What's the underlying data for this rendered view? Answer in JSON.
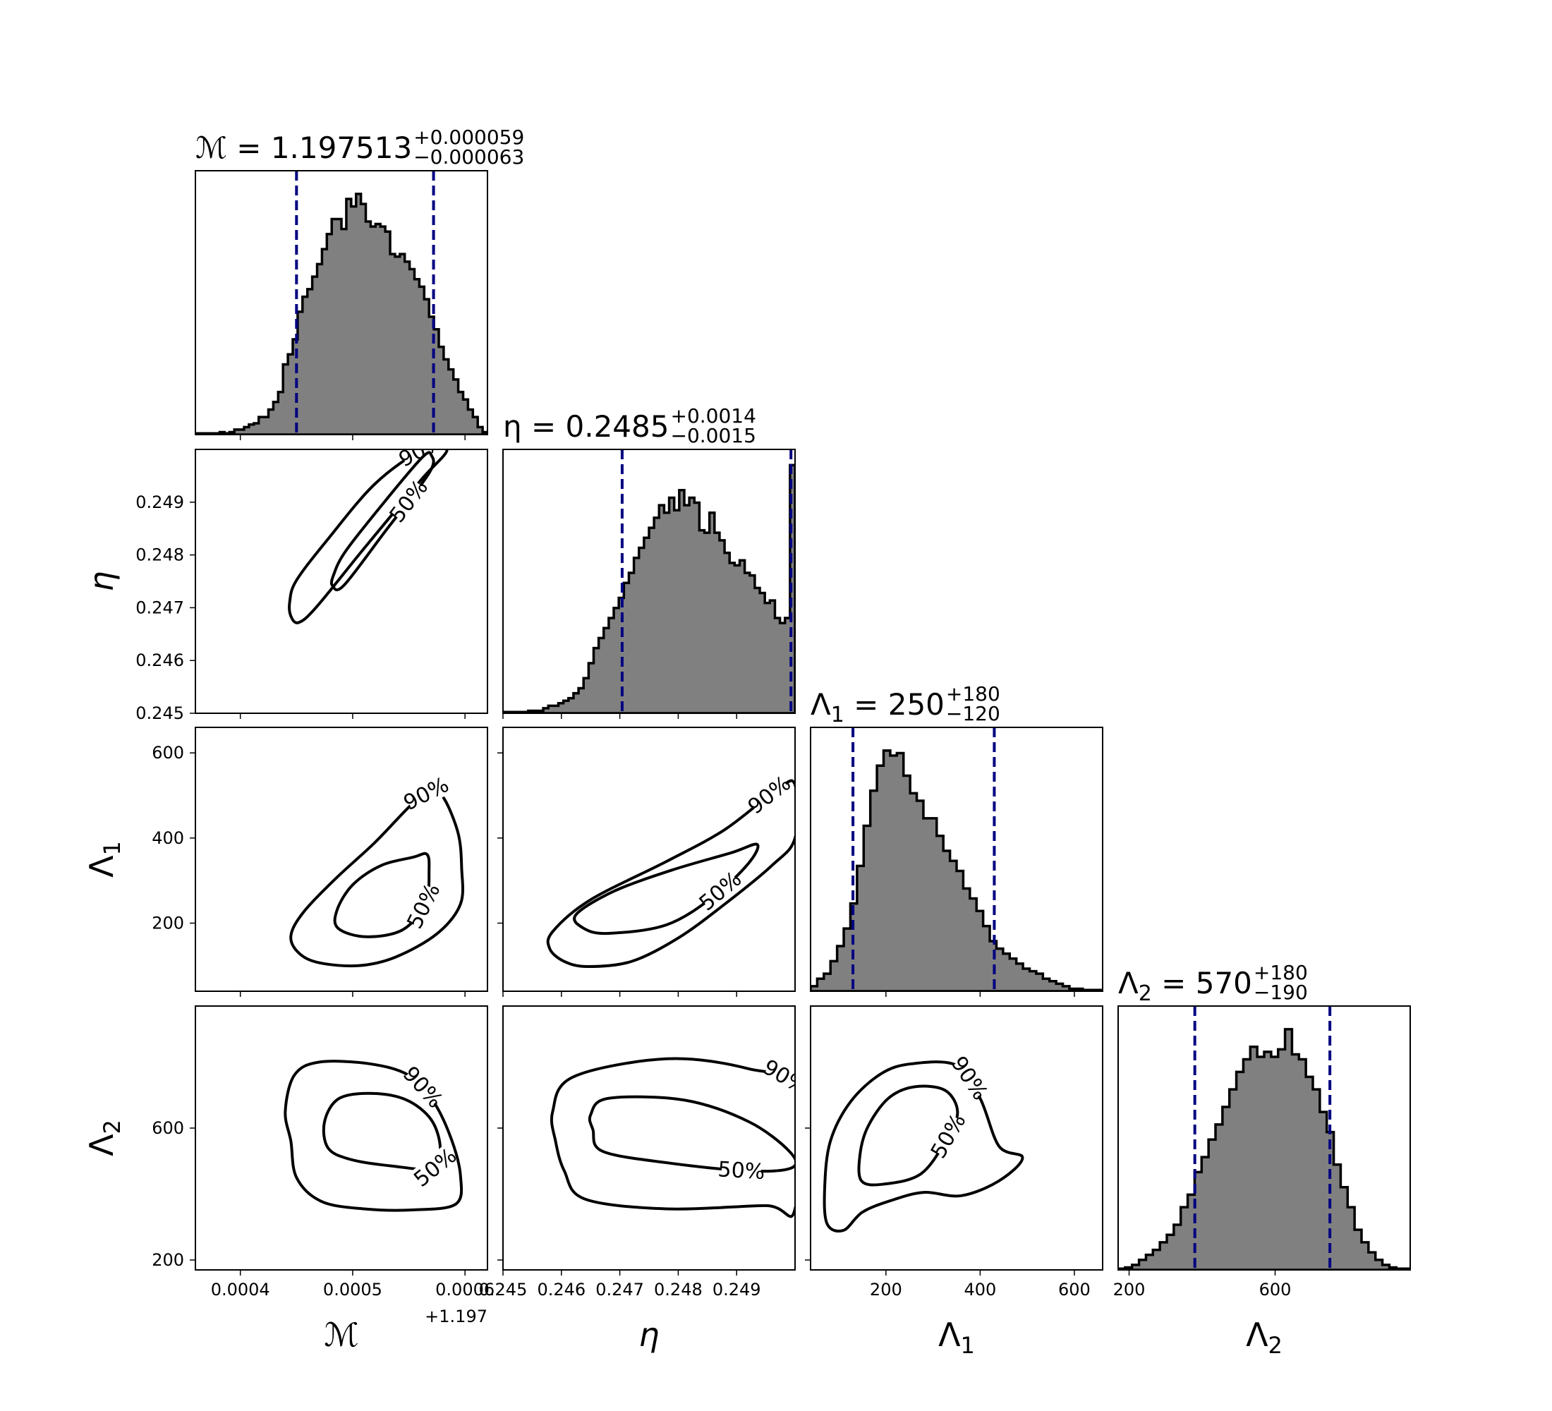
{
  "chart_data": {
    "type": "corner",
    "parameters": [
      {
        "symbol": "ℳ",
        "sub": "",
        "axis_offset": "+1.197",
        "range": [
          0.00036,
          0.00062
        ],
        "title": {
          "prefix": "ℳ = ",
          "value": "1.197513",
          "plus": "+0.000059",
          "minus": "−0.000063"
        },
        "ticks": [
          0.0004,
          0.0005,
          0.0006
        ],
        "tick_labels": [
          "0.0004",
          "0.0005",
          "0.0006"
        ],
        "quantiles": [
          0.00045,
          0.000572
        ],
        "peak": 0.000515
      },
      {
        "symbol": "η",
        "sub": "",
        "axis_offset": "",
        "range": [
          0.245,
          0.25
        ],
        "title": {
          "prefix": "η = ",
          "value": "0.2485",
          "plus": "+0.0014",
          "minus": "−0.0015"
        },
        "ticks": [
          0.245,
          0.246,
          0.247,
          0.248,
          0.249
        ],
        "tick_labels": [
          "0.245",
          "0.246",
          "0.247",
          "0.248",
          "0.249"
        ],
        "quantiles": [
          0.24704,
          0.24993
        ],
        "peak": 0.2485
      },
      {
        "symbol": "Λ",
        "sub": "1",
        "axis_offset": "",
        "range": [
          40,
          660
        ],
        "title": {
          "prefix": "Λ",
          "sub": "1",
          "suffix": " = ",
          "value": "250",
          "plus": "+180",
          "minus": "−120"
        },
        "ticks": [
          200,
          400,
          600
        ],
        "tick_labels": [
          "200",
          "400",
          "600"
        ],
        "quantiles": [
          130,
          430
        ],
        "peak": 230
      },
      {
        "symbol": "Λ",
        "sub": "2",
        "axis_offset": "",
        "range": [
          170,
          970
        ],
        "title": {
          "prefix": "Λ",
          "sub": "2",
          "suffix": " = ",
          "value": "570",
          "plus": "+180",
          "minus": "−190"
        },
        "ticks": [
          200,
          600
        ],
        "tick_labels": [
          "200",
          "600"
        ],
        "quantiles": [
          380,
          750
        ],
        "peak": 585
      }
    ],
    "histograms": [
      {
        "param": "ℳ",
        "bins": [
          0.00036,
          0.00062
        ],
        "counts": [
          0.005,
          0.005,
          0.005,
          0.005,
          0.005,
          0.01,
          0.005,
          0.01,
          0.02,
          0.02,
          0.03,
          0.04,
          0.045,
          0.07,
          0.07,
          0.1,
          0.13,
          0.17,
          0.28,
          0.32,
          0.38,
          0.49,
          0.55,
          0.58,
          0.63,
          0.68,
          0.74,
          0.8,
          0.86,
          0.86,
          0.82,
          0.94,
          0.91,
          0.96,
          0.92,
          0.85,
          0.83,
          0.84,
          0.83,
          0.81,
          0.72,
          0.71,
          0.72,
          0.69,
          0.66,
          0.62,
          0.59,
          0.54,
          0.47,
          0.42,
          0.35,
          0.3,
          0.26,
          0.22,
          0.17,
          0.14,
          0.1,
          0.07,
          0.03,
          0.01
        ]
      },
      {
        "param": "η",
        "bins": [
          0.245,
          0.25
        ],
        "counts": [
          0.005,
          0.005,
          0.005,
          0.005,
          0.005,
          0.01,
          0.01,
          0.01,
          0.02,
          0.03,
          0.03,
          0.04,
          0.05,
          0.06,
          0.08,
          0.1,
          0.14,
          0.2,
          0.26,
          0.3,
          0.34,
          0.38,
          0.42,
          0.46,
          0.52,
          0.56,
          0.62,
          0.66,
          0.7,
          0.74,
          0.78,
          0.83,
          0.8,
          0.86,
          0.81,
          0.89,
          0.83,
          0.86,
          0.84,
          0.73,
          0.72,
          0.8,
          0.72,
          0.69,
          0.64,
          0.6,
          0.59,
          0.61,
          0.56,
          0.55,
          0.5,
          0.48,
          0.44,
          0.45,
          0.38,
          0.36,
          0.38,
          0.99
        ]
      },
      {
        "param": "Λ1",
        "bins": [
          40,
          660
        ],
        "counts": [
          0.02,
          0.05,
          0.07,
          0.12,
          0.18,
          0.25,
          0.35,
          0.5,
          0.66,
          0.8,
          0.9,
          0.96,
          0.94,
          0.95,
          0.86,
          0.79,
          0.76,
          0.69,
          0.69,
          0.62,
          0.56,
          0.52,
          0.48,
          0.41,
          0.37,
          0.32,
          0.26,
          0.2,
          0.17,
          0.15,
          0.13,
          0.11,
          0.09,
          0.08,
          0.07,
          0.05,
          0.04,
          0.03,
          0.02,
          0.01,
          0.01,
          0.005,
          0.005,
          0.005
        ]
      },
      {
        "param": "Λ2",
        "bins": [
          170,
          970
        ],
        "counts": [
          0.005,
          0.01,
          0.02,
          0.04,
          0.06,
          0.08,
          0.11,
          0.14,
          0.18,
          0.25,
          0.3,
          0.39,
          0.45,
          0.52,
          0.58,
          0.65,
          0.72,
          0.79,
          0.84,
          0.89,
          0.85,
          0.87,
          0.85,
          0.88,
          0.96,
          0.86,
          0.84,
          0.77,
          0.72,
          0.63,
          0.55,
          0.42,
          0.33,
          0.25,
          0.16,
          0.11,
          0.07,
          0.04,
          0.02,
          0.01,
          0.005,
          0.005
        ]
      }
    ],
    "contour_levels": [
      "50%",
      "90%"
    ],
    "contours": [
      {
        "x": "ℳ",
        "y": "η",
        "levels": [
          {
            "label": "90%",
            "points": [
              [
                0.000445,
                0.24684
              ],
              [
                0.000452,
                0.24672
              ],
              [
                0.000468,
                0.24702
              ],
              [
                0.00051,
                0.24812
              ],
              [
                0.00056,
                0.2494
              ],
              [
                0.000584,
                0.24999
              ],
              [
                0.000562,
                0.24999
              ],
              [
                0.00052,
                0.24935
              ],
              [
                0.000478,
                0.2483
              ],
              [
                0.00045,
                0.24752
              ],
              [
                0.000444,
                0.24712
              ],
              [
                0.000445,
                0.24684
              ]
            ]
          },
          {
            "label": "50%",
            "points": [
              [
                0.000482,
                0.24742
              ],
              [
                0.000492,
                0.24742
              ],
              [
                0.000528,
                0.24842
              ],
              [
                0.000568,
                0.24955
              ],
              [
                0.00057,
                0.24989
              ],
              [
                0.000562,
                0.24985
              ],
              [
                0.00053,
                0.24905
              ],
              [
                0.000494,
                0.24808
              ],
              [
                0.000483,
                0.24762
              ],
              [
                0.000482,
                0.24742
              ]
            ]
          }
        ]
      },
      {
        "x": "ℳ",
        "y": "Λ1",
        "levels": [
          {
            "label": "90%",
            "points": [
              [
                0.00047,
                107
              ],
              [
                0.000505,
                100
              ],
              [
                0.000538,
                120
              ],
              [
                0.000575,
                175
              ],
              [
                0.000596,
                245
              ],
              [
                0.000597,
                330
              ],
              [
                0.000594,
                410
              ],
              [
                0.000582,
                490
              ],
              [
                0.000572,
                508
              ],
              [
                0.000555,
                485
              ],
              [
                0.00052,
                390
              ],
              [
                0.000485,
                305
              ],
              [
                0.000456,
                225
              ],
              [
                0.000445,
                170
              ],
              [
                0.000452,
                130
              ],
              [
                0.00047,
                107
              ]
            ]
          },
          {
            "label": "50%",
            "points": [
              [
                0.000487,
                188
              ],
              [
                0.000512,
                168
              ],
              [
                0.000545,
                185
              ],
              [
                0.000565,
                250
              ],
              [
                0.000568,
                325
              ],
              [
                0.000566,
                362
              ],
              [
                0.000554,
                355
              ],
              [
                0.000525,
                335
              ],
              [
                0.0005,
                290
              ],
              [
                0.000486,
                230
              ],
              [
                0.000487,
                188
              ]
            ]
          }
        ]
      },
      {
        "x": "η",
        "y": "Λ1",
        "levels": [
          {
            "label": "90%",
            "points": [
              [
                0.24605,
                110
              ],
              [
                0.24645,
                98
              ],
              [
                0.2472,
                110
              ],
              [
                0.248,
                165
              ],
              [
                0.2488,
                245
              ],
              [
                0.2496,
                335
              ],
              [
                0.25,
                400
              ],
              [
                0.25,
                525
              ],
              [
                0.2497,
                515
              ],
              [
                0.2488,
                420
              ],
              [
                0.2478,
                345
              ],
              [
                0.2465,
                255
              ],
              [
                0.24585,
                180
              ],
              [
                0.2458,
                140
              ],
              [
                0.24605,
                110
              ]
            ]
          },
          {
            "label": "50%",
            "points": [
              [
                0.24638,
                188
              ],
              [
                0.2468,
                176
              ],
              [
                0.2478,
                196
              ],
              [
                0.2486,
                262
              ],
              [
                0.2492,
                340
              ],
              [
                0.24935,
                385
              ],
              [
                0.2489,
                365
              ],
              [
                0.2479,
                325
              ],
              [
                0.2469,
                275
              ],
              [
                0.24625,
                220
              ],
              [
                0.24638,
                188
              ]
            ]
          }
        ]
      },
      {
        "x": "ℳ",
        "y": "Λ2",
        "levels": [
          {
            "label": "90%",
            "points": [
              [
                0.00045,
                450
              ],
              [
                0.000472,
                378
              ],
              [
                0.00051,
                355
              ],
              [
                0.000555,
                352
              ],
              [
                0.000592,
                370
              ],
              [
                0.000596,
                455
              ],
              [
                0.000588,
                565
              ],
              [
                0.000572,
                680
              ],
              [
                0.00055,
                760
              ],
              [
                0.000515,
                795
              ],
              [
                0.00047,
                800
              ],
              [
                0.000448,
                760
              ],
              [
                0.00044,
                650
              ],
              [
                0.000445,
                560
              ],
              [
                0.00045,
                450
              ]
            ]
          },
          {
            "label": "50%",
            "points": [
              [
                0.000478,
                540
              ],
              [
                0.000498,
                505
              ],
              [
                0.000535,
                485
              ],
              [
                0.000572,
                478
              ],
              [
                0.000578,
                540
              ],
              [
                0.00057,
                625
              ],
              [
                0.000548,
                685
              ],
              [
                0.000518,
                705
              ],
              [
                0.000488,
                690
              ],
              [
                0.000475,
                620
              ],
              [
                0.000478,
                540
              ]
            ]
          }
        ]
      },
      {
        "x": "η",
        "y": "Λ2",
        "levels": [
          {
            "label": "90%",
            "points": [
              [
                0.24605,
                470
              ],
              [
                0.2464,
                385
              ],
              [
                0.2478,
                355
              ],
              [
                0.2495,
                365
              ],
              [
                0.25,
                355
              ],
              [
                0.25,
                710
              ],
              [
                0.2492,
                780
              ],
              [
                0.2478,
                810
              ],
              [
                0.2462,
                755
              ],
              [
                0.24585,
                650
              ],
              [
                0.2459,
                560
              ],
              [
                0.24605,
                470
              ]
            ]
          },
          {
            "label": "50%",
            "points": [
              [
                0.24654,
                595
              ],
              [
                0.2467,
                530
              ],
              [
                0.2478,
                495
              ],
              [
                0.2492,
                470
              ],
              [
                0.24995,
                480
              ],
              [
                0.2499,
                530
              ],
              [
                0.2492,
                620
              ],
              [
                0.2481,
                685
              ],
              [
                0.2468,
                690
              ],
              [
                0.2465,
                640
              ],
              [
                0.24654,
                595
              ]
            ]
          }
        ]
      },
      {
        "x": "Λ1",
        "y": "Λ2",
        "levels": [
          {
            "label": "90%",
            "points": [
              [
                75,
                310
              ],
              [
                110,
                290
              ],
              [
                150,
                345
              ],
              [
                210,
                380
              ],
              [
                280,
                405
              ],
              [
                360,
                395
              ],
              [
                440,
                440
              ],
              [
                490,
                510
              ],
              [
                440,
                545
              ],
              [
                400,
                690
              ],
              [
                350,
                790
              ],
              [
                255,
                795
              ],
              [
                190,
                765
              ],
              [
                125,
                680
              ],
              [
                82,
                560
              ],
              [
                70,
                420
              ],
              [
                75,
                310
              ]
            ]
          },
          {
            "label": "50%",
            "points": [
              [
                148,
                440
              ],
              [
                195,
                430
              ],
              [
                275,
                462
              ],
              [
                330,
                570
              ],
              [
                352,
                650
              ],
              [
                325,
                715
              ],
              [
                260,
                725
              ],
              [
                205,
                690
              ],
              [
                162,
                605
              ],
              [
                145,
                520
              ],
              [
                148,
                440
              ]
            ]
          }
        ]
      }
    ]
  }
}
